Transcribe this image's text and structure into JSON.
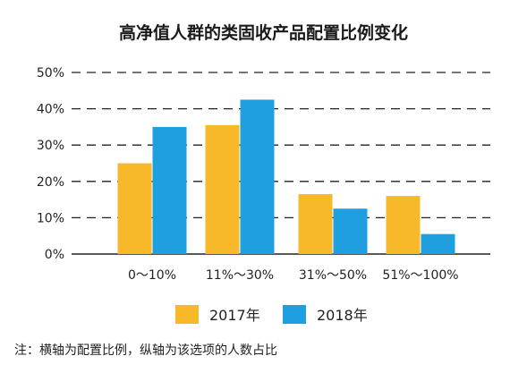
{
  "chart_data": {
    "type": "bar",
    "title": "高净值人群的类固收产品配置比例变化",
    "categories": [
      "0～10%",
      "11%～30%",
      "31%～50%",
      "51%～100%"
    ],
    "series": [
      {
        "name": "2017年",
        "values": [
          25,
          35.5,
          16.5,
          16
        ],
        "color": "#f7b82a"
      },
      {
        "name": "2018年",
        "values": [
          35,
          42.5,
          12.5,
          5.5
        ],
        "color": "#1f9fe0"
      }
    ],
    "ylim": [
      0,
      50
    ],
    "yticks": [
      "0%",
      "10%",
      "20%",
      "30%",
      "40%",
      "50%"
    ],
    "grid": true,
    "legend": "bottom"
  },
  "note": "注：横轴为配置比例，纵轴为该选项的人数占比"
}
